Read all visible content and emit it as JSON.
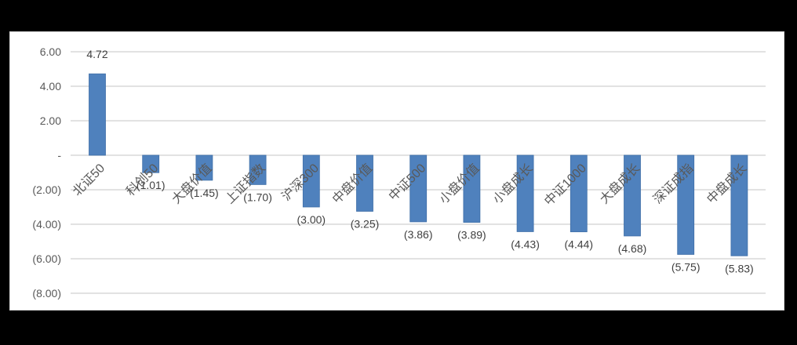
{
  "chart_data": {
    "type": "bar",
    "title": "",
    "xlabel": "",
    "ylabel": "",
    "categories": [
      "北证50",
      "科创50",
      "大盘价值",
      "上证指数",
      "沪深300",
      "中盘价值",
      "中证500",
      "小盘价值",
      "小盘成长",
      "中证1000",
      "大盘成长",
      "深证成指",
      "中盘成长"
    ],
    "values": [
      4.72,
      -1.01,
      -1.45,
      -1.7,
      -3.0,
      -3.25,
      -3.86,
      -3.89,
      -4.43,
      -4.44,
      -4.68,
      -5.75,
      -5.83
    ],
    "data_labels": [
      "4.72",
      "(1.01)",
      "(1.45)",
      "(1.70)",
      "(3.00)",
      "(3.25)",
      "(3.86)",
      "(3.89)",
      "(4.43)",
      "(4.44)",
      "(4.68)",
      "(5.75)",
      "(5.83)"
    ],
    "ylim": [
      -8,
      6
    ],
    "yticks": [
      6,
      4,
      2,
      0,
      -2,
      -4,
      -6,
      -8
    ],
    "ytick_labels": [
      "6.00",
      "4.00",
      "2.00",
      "-",
      "(2.00)",
      "(4.00)",
      "(6.00)",
      "(8.00)"
    ],
    "grid": true,
    "legend": null,
    "bar_color": "#4f81bd"
  }
}
